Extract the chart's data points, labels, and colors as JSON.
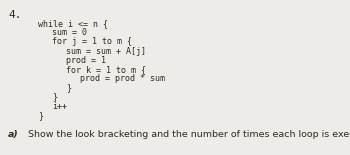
{
  "number": "4.",
  "code_lines": [
    {
      "text": "while i <= n {",
      "indent": 0
    },
    {
      "text": "sum = 0",
      "indent": 1
    },
    {
      "text": "for j = 1 to m {",
      "indent": 1
    },
    {
      "text": "sum = sum + A[j]",
      "indent": 2
    },
    {
      "text": "prod = 1",
      "indent": 2
    },
    {
      "text": "for k = 1 to m {",
      "indent": 2
    },
    {
      "text": "prod = prod * sum",
      "indent": 3
    },
    {
      "text": "}",
      "indent": 2
    },
    {
      "text": "}",
      "indent": 1
    },
    {
      "text": "i++",
      "indent": 1
    },
    {
      "text": "}",
      "indent": 0
    }
  ],
  "question_label": "a)",
  "question_text": "Show the look bracketing and the number of times each loop is executed.",
  "background_color": "#eeece8",
  "text_color": "#2e2b27",
  "code_font_size": 6.0,
  "number_font_size": 8.0,
  "question_font_size": 6.8,
  "indent_chars": 4
}
